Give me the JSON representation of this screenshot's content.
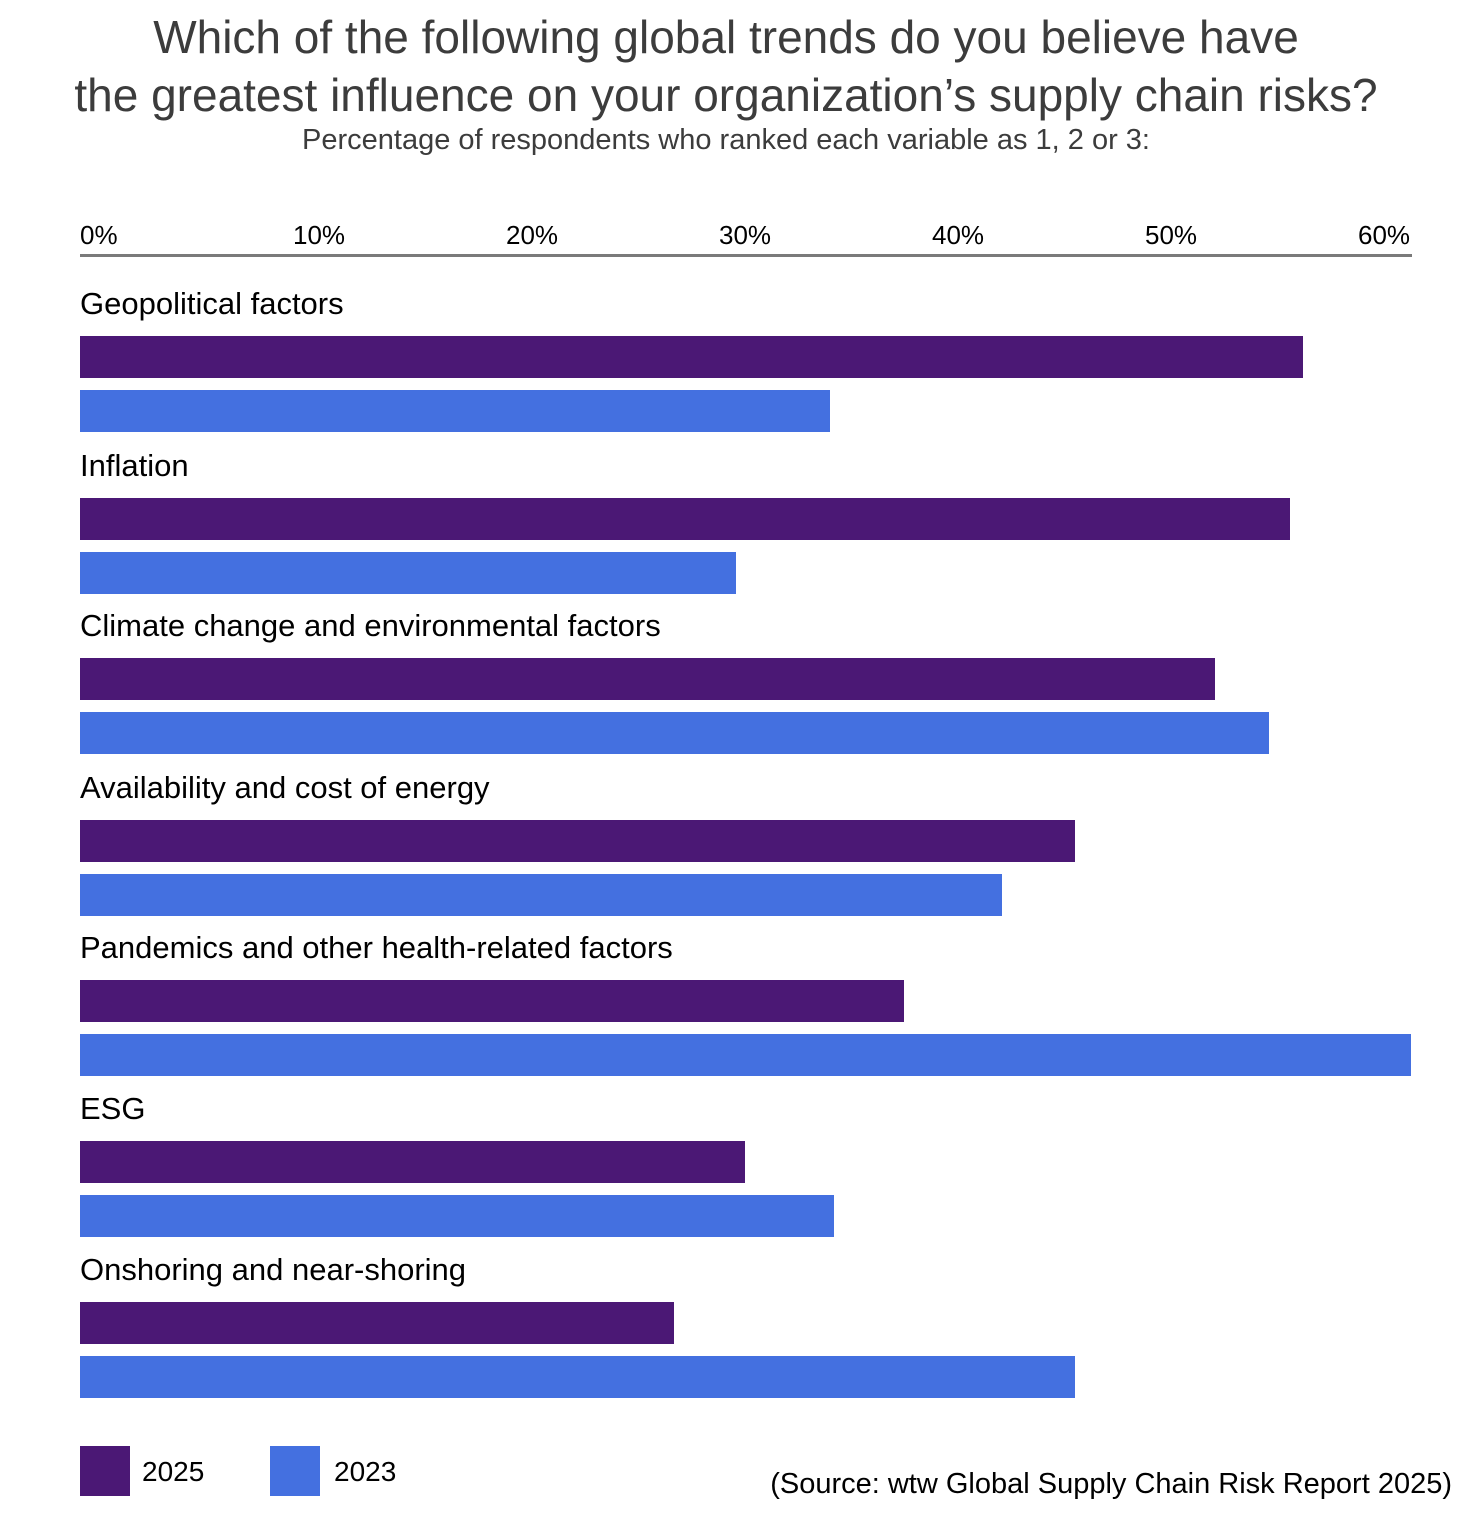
{
  "chart_data": {
    "type": "bar",
    "orientation": "horizontal",
    "title_lines": [
      "Which of the following global trends do you believe have",
      "the greatest influence on your organization’s supply chain risks?"
    ],
    "subtitle": "Percentage of respondents who ranked each variable as 1, 2 or 3:",
    "x_ticks": [
      "0%",
      "10%",
      "20%",
      "30%",
      "40%",
      "50%",
      "60%"
    ],
    "xlim": [
      0,
      62
    ],
    "grid": false,
    "legend_position": "bottom-left",
    "categories": [
      "Geopolitical factors",
      "Inflation",
      "Climate change and environmental factors",
      "Availability and cost of energy",
      "Pandemics and other health-related factors",
      "ESG",
      "Onshoring and near-shoring"
    ],
    "series": [
      {
        "name": "2025",
        "color": "#4b1875",
        "values": [
          57.4,
          56.8,
          53.3,
          46.7,
          38.7,
          31.2,
          27.9
        ]
      },
      {
        "name": "2023",
        "color": "#4470e0",
        "values": [
          35.2,
          30.8,
          55.8,
          43.3,
          62.5,
          35.4,
          46.7
        ]
      }
    ],
    "source": "(Source: wtw Global Supply Chain Risk Report 2025)"
  }
}
